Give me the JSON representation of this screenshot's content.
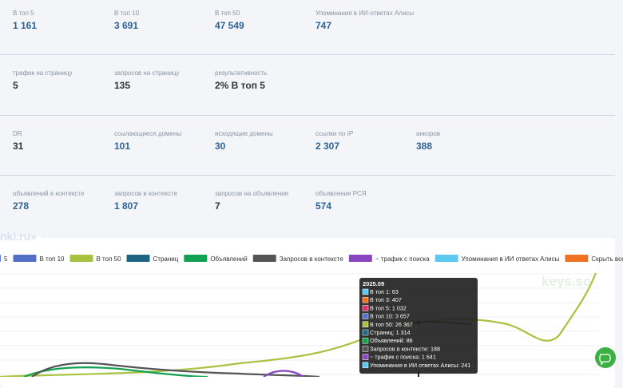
{
  "stats": [
    [
      {
        "label": "В топ 5",
        "value": "1 161",
        "link": true
      },
      {
        "label": "В топ 10",
        "value": "3 691",
        "link": true
      },
      {
        "label": "В топ 50",
        "value": "47 549",
        "link": true
      },
      {
        "label": "Упоминания в ИИ-ответах Алисы",
        "value": "747",
        "link": true
      }
    ],
    [
      {
        "label": "трафик на страницу",
        "value": "5",
        "link": false
      },
      {
        "label": "запросов на страницу",
        "value": "135",
        "link": false
      },
      {
        "label": "результативность",
        "value": "2% В топ 5",
        "link": false
      }
    ],
    [
      {
        "label": "DR",
        "value": "31",
        "link": false
      },
      {
        "label": "ссылающиеся домены",
        "value": "101",
        "link": true
      },
      {
        "label": "исходящие домены",
        "value": "30",
        "link": true
      },
      {
        "label": "ссылки по IP",
        "value": "2 307",
        "link": true
      },
      {
        "label": "анкоров",
        "value": "388",
        "link": true
      }
    ],
    [
      {
        "label": "объявлений в контексте",
        "value": "278",
        "link": true
      },
      {
        "label": "запросов в контексте",
        "value": "1 807",
        "link": true
      },
      {
        "label": "запросов на объявление",
        "value": "7",
        "link": false
      },
      {
        "label": "объявления РСЯ",
        "value": "574",
        "link": true
      }
    ]
  ],
  "chart": {
    "heading": "nki.ru»",
    "legend": [
      {
        "name": "5",
        "color": "#5b7fc4"
      },
      {
        "name": "В топ 10",
        "color": "#5470c6"
      },
      {
        "name": "В топ 50",
        "color": "#a9c23f"
      },
      {
        "name": "Страниц",
        "color": "#1f6482"
      },
      {
        "name": "Объявлений",
        "color": "#12a150"
      },
      {
        "name": "Запросов в контексте",
        "color": "#555555"
      },
      {
        "name": "~ трафик с поиска",
        "color": "#8a46c2"
      },
      {
        "name": "Упоминания в ИИ ответах Алисы",
        "color": "#5cc8f2"
      },
      {
        "name": "Скрыть все",
        "color": "#f07124"
      }
    ],
    "tooltip": {
      "title": "2025.09",
      "items": [
        {
          "text": "В топ 1: 63",
          "color": "#5cc8f2"
        },
        {
          "text": "В топ 3: 407",
          "color": "#f07124"
        },
        {
          "text": "В топ 5: 1 032",
          "color": "#e0306a"
        },
        {
          "text": "В топ 10: 3 657",
          "color": "#5470c6"
        },
        {
          "text": "В топ 50: 26 367",
          "color": "#a9c23f"
        },
        {
          "text": "Страниц: 1 314",
          "color": "#1f6482"
        },
        {
          "text": "Объявлений: 86",
          "color": "#12a150"
        },
        {
          "text": "Запросов в контексте: 188",
          "color": "#555555"
        },
        {
          "text": "~ трафик с поиска: 1 641",
          "color": "#8a46c2"
        },
        {
          "text": "Упоминания в ИИ ответах Алисы: 241",
          "color": "#5cc8f2"
        }
      ]
    },
    "watermark": "keys.so"
  }
}
